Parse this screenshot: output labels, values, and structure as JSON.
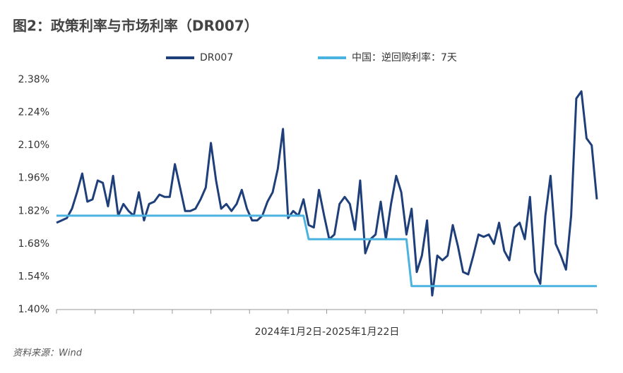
{
  "chart_data": {
    "type": "line",
    "title": "图2：政策利率与市场利率（DR007）",
    "x_label": "2024年1月2日-2025年1月22日",
    "source": "资料来源：Wind",
    "ylim": [
      1.4,
      2.38
    ],
    "yticks": [
      {
        "value": 1.4,
        "label": "1.40%"
      },
      {
        "value": 1.54,
        "label": "1.54%"
      },
      {
        "value": 1.68,
        "label": "1.68%"
      },
      {
        "value": 1.82,
        "label": "1.82%"
      },
      {
        "value": 1.96,
        "label": "1.96%"
      },
      {
        "value": 2.1,
        "label": "2.10%"
      },
      {
        "value": 2.24,
        "label": "2.24%"
      },
      {
        "value": 2.38,
        "label": "2.38%"
      }
    ],
    "legend": "top",
    "series": [
      {
        "name": "DR007",
        "color": "#1f3f7a",
        "values": [
          1.77,
          1.78,
          1.79,
          1.83,
          1.9,
          1.98,
          1.86,
          1.87,
          1.95,
          1.94,
          1.84,
          1.97,
          1.8,
          1.85,
          1.82,
          1.8,
          1.9,
          1.78,
          1.85,
          1.86,
          1.89,
          1.88,
          1.88,
          2.02,
          1.92,
          1.82,
          1.82,
          1.83,
          1.87,
          1.92,
          2.11,
          1.95,
          1.83,
          1.85,
          1.82,
          1.85,
          1.91,
          1.83,
          1.78,
          1.78,
          1.8,
          1.86,
          1.9,
          2.0,
          2.17,
          1.79,
          1.82,
          1.8,
          1.87,
          1.76,
          1.75,
          1.91,
          1.8,
          1.7,
          1.72,
          1.85,
          1.88,
          1.85,
          1.74,
          1.95,
          1.64,
          1.7,
          1.72,
          1.86,
          1.7,
          1.85,
          1.97,
          1.9,
          1.72,
          1.83,
          1.56,
          1.63,
          1.78,
          1.46,
          1.63,
          1.61,
          1.63,
          1.76,
          1.67,
          1.56,
          1.55,
          1.63,
          1.72,
          1.71,
          1.72,
          1.68,
          1.77,
          1.65,
          1.61,
          1.75,
          1.77,
          1.7,
          1.88,
          1.56,
          1.51,
          1.8,
          1.97,
          1.68,
          1.63,
          1.57,
          1.8,
          2.3,
          2.33,
          2.13,
          2.1,
          1.87
        ]
      },
      {
        "name": "中国：逆回购利率：7天",
        "color": "#4bb3e0",
        "values": [
          1.8,
          1.8,
          1.8,
          1.8,
          1.8,
          1.8,
          1.8,
          1.8,
          1.8,
          1.8,
          1.8,
          1.8,
          1.8,
          1.8,
          1.8,
          1.8,
          1.8,
          1.8,
          1.8,
          1.8,
          1.8,
          1.8,
          1.8,
          1.8,
          1.8,
          1.8,
          1.8,
          1.8,
          1.8,
          1.8,
          1.8,
          1.8,
          1.8,
          1.8,
          1.8,
          1.8,
          1.8,
          1.8,
          1.8,
          1.8,
          1.8,
          1.8,
          1.8,
          1.8,
          1.8,
          1.8,
          1.8,
          1.8,
          1.8,
          1.7,
          1.7,
          1.7,
          1.7,
          1.7,
          1.7,
          1.7,
          1.7,
          1.7,
          1.7,
          1.7,
          1.7,
          1.7,
          1.7,
          1.7,
          1.7,
          1.7,
          1.7,
          1.7,
          1.7,
          1.5,
          1.5,
          1.5,
          1.5,
          1.5,
          1.5,
          1.5,
          1.5,
          1.5,
          1.5,
          1.5,
          1.5,
          1.5,
          1.5,
          1.5,
          1.5,
          1.5,
          1.5,
          1.5,
          1.5,
          1.5,
          1.5,
          1.5,
          1.5,
          1.5,
          1.5,
          1.5,
          1.5,
          1.5,
          1.5,
          1.5,
          1.5,
          1.5,
          1.5,
          1.5,
          1.5,
          1.5
        ]
      }
    ]
  }
}
